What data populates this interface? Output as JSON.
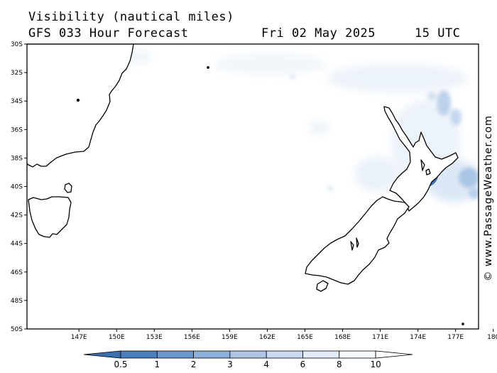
{
  "header": {
    "title": "Visibility (nautical miles)",
    "model": "GFS 033 Hour Forecast",
    "valid_date": "Fri 02 May 2025",
    "valid_time": "15 UTC"
  },
  "map": {
    "lat_labels": [
      "30S",
      "32S",
      "34S",
      "36S",
      "38S",
      "40S",
      "42S",
      "44S",
      "46S",
      "48S",
      "50S"
    ],
    "lon_labels": [
      "147E",
      "150E",
      "153E",
      "156E",
      "159E",
      "162E",
      "165E",
      "168E",
      "171E",
      "174E",
      "177E",
      "180"
    ],
    "land_color": "#ffffff",
    "coast_color": "#000000"
  },
  "legend": {
    "labels": [
      "0.5",
      "1",
      "2",
      "3",
      "4",
      "6",
      "8",
      "10"
    ],
    "colors": [
      "#3a6fb0",
      "#4a80c0",
      "#6a98cc",
      "#8bb0da",
      "#abc6e6",
      "#c8daef",
      "#e2ecf7",
      "#f5f8fc"
    ]
  },
  "watermark": "© www.PassageWeather.com"
}
